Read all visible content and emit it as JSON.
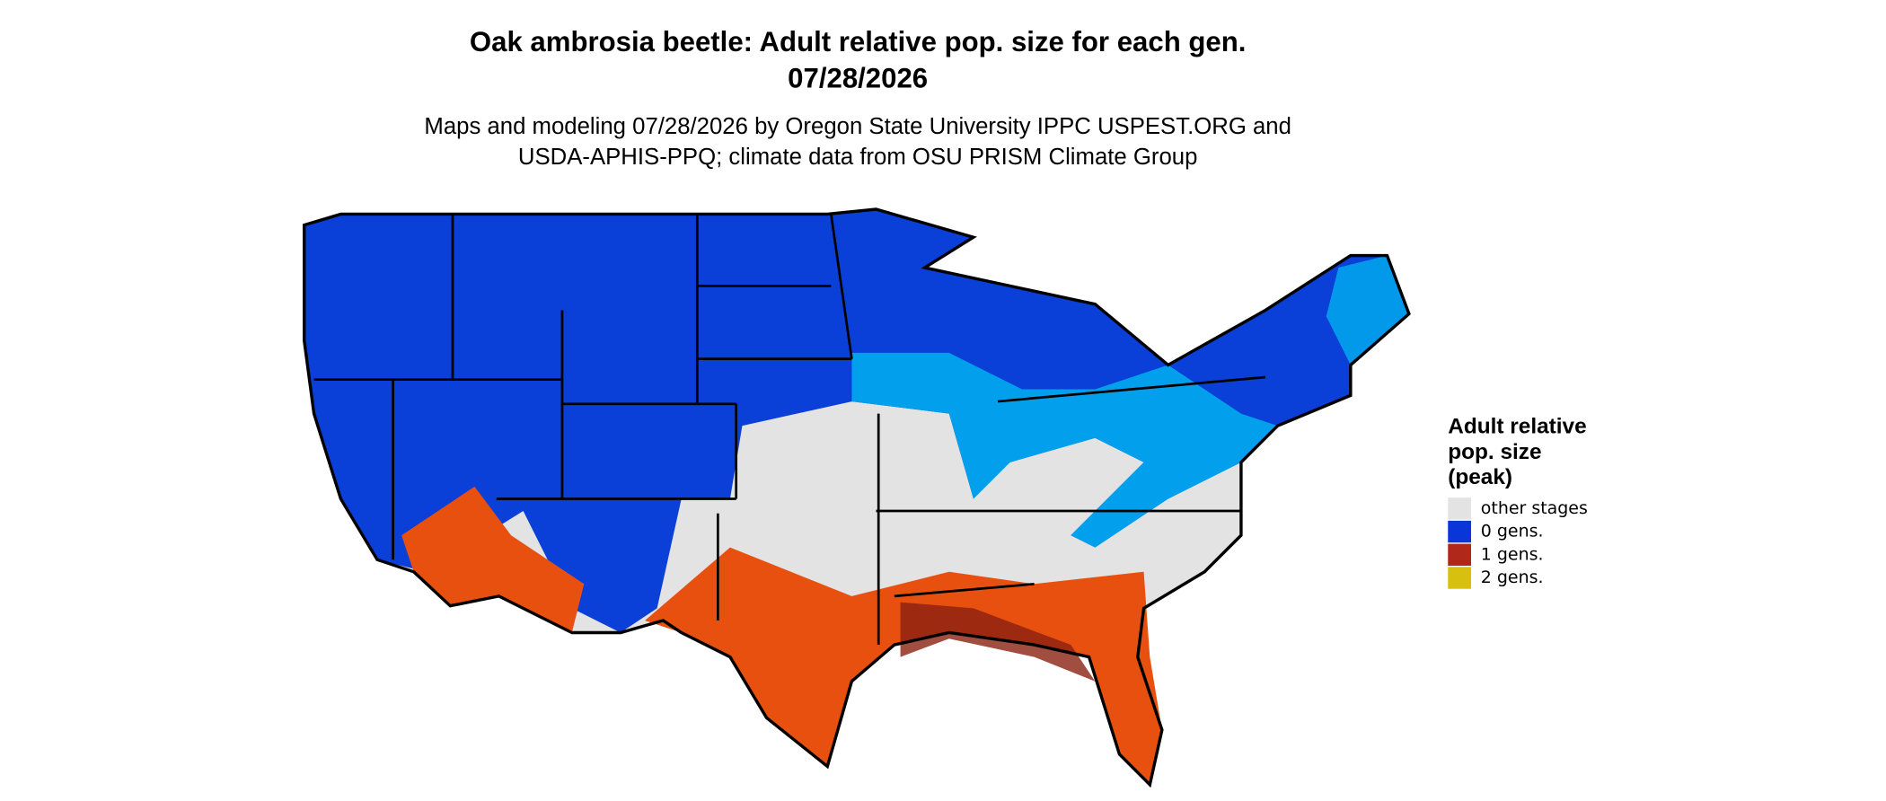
{
  "title_lines": [
    "Oak ambrosia beetle: Adult relative pop. size for each gen.",
    "07/28/2026"
  ],
  "subtitle_lines": [
    "Maps and modeling 07/28/2026 by Oregon State University IPPC USPEST.ORG and",
    "USDA-APHIS-PPQ; climate data from OSU PRISM Climate Group"
  ],
  "legend": {
    "title_lines": [
      "Adult relative",
      "pop. size",
      "(peak)"
    ],
    "entries": [
      {
        "label": "other stages",
        "color": "#e3e3e3"
      },
      {
        "label": "0 gens.",
        "color": "#0a35d8"
      },
      {
        "label": "1 gens.",
        "color": "#b0281a"
      },
      {
        "label": "2 gens.",
        "color": "#d8c010"
      }
    ]
  }
}
